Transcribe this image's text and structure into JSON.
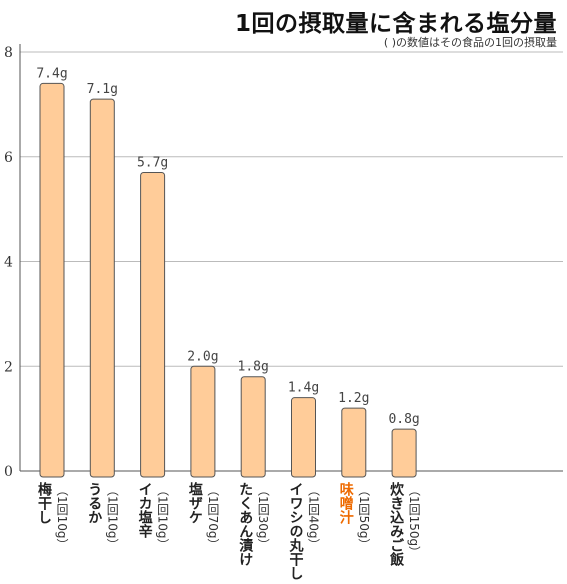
{
  "chart_data": {
    "type": "bar",
    "title": "1回の摂取量に含まれる塩分量",
    "subtitle": "(   )の数値はその食品の1回の摂取量",
    "categories": [
      "梅干し",
      "うるか",
      "イカ塩辛",
      "塩ザケ",
      "たくあん漬け",
      "イワシの丸干し",
      "味噌汁",
      "炊き込みご飯"
    ],
    "portions": [
      "（1回10g）",
      "（1回10g）",
      "（1回10g）",
      "（1回70g）",
      "（1回30g）",
      "（1回40g）",
      "（1回50g）",
      "（1回150g）"
    ],
    "values": [
      7.4,
      7.1,
      5.7,
      2.0,
      1.8,
      1.4,
      1.2,
      0.8
    ],
    "value_labels": [
      "7.4g",
      "7.1g",
      "5.7g",
      "2.0g",
      "1.8g",
      "1.4g",
      "1.2g",
      "0.8g"
    ],
    "highlight_index": 6,
    "yticks": [
      0,
      2,
      4,
      6,
      8
    ],
    "ylim": [
      0,
      8
    ],
    "xlabel": "",
    "ylabel": "",
    "grid": true,
    "colors": {
      "bar_fill": "#ffcc99",
      "bar_stroke": "#555555",
      "grid": "#bbbbbb",
      "highlight_text": "#ee6a00"
    }
  }
}
